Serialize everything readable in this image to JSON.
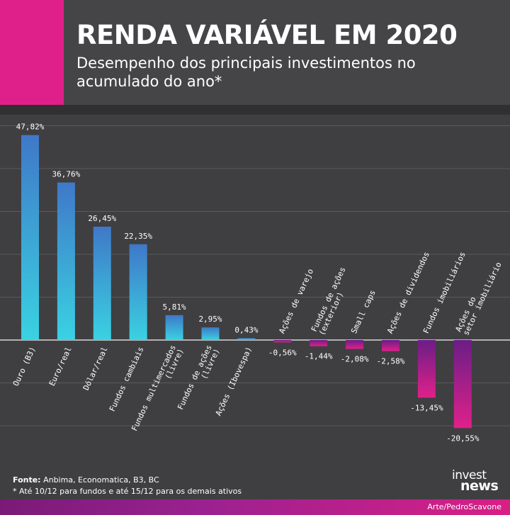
{
  "header": {
    "title": "RENDA VARIÁVEL EM 2020",
    "subtitle": "Desempenho dos principais investimentos no acumulado do ano*"
  },
  "colors": {
    "accent": "#e0208a",
    "positive_top": "#3f78c8",
    "positive_bottom": "#3ad2e2",
    "negative_top": "#6a1e86",
    "negative_bottom": "#e0208a"
  },
  "chart_data": {
    "type": "bar",
    "title": "RENDA VARIÁVEL EM 2020",
    "xlabel": "",
    "ylabel": "",
    "grid": true,
    "ylim": [
      -22,
      50
    ],
    "categories": [
      "Ouro (B3)",
      "Euro/real",
      "Dólar/real",
      "Fundos cambiais",
      "Fundos multimercados (livre)",
      "Fundos de ações (livre)",
      "Ações (Ibovespa)",
      "Ações de varejo",
      "Fundos de ações (exterior)",
      "Small caps",
      "Ações de dividendos",
      "Fundos imobiliários",
      "Ações do setor imobiliário"
    ],
    "category_lines": [
      [
        "Ouro (B3)"
      ],
      [
        "Euro/real"
      ],
      [
        "Dólar/real"
      ],
      [
        "Fundos cambiais"
      ],
      [
        "Fundos multimercados",
        "(livre)"
      ],
      [
        "Fundos de ações",
        "(livre)"
      ],
      [
        "Ações (Ibovespa)"
      ],
      [
        "Ações de varejo"
      ],
      [
        "Fundos de ações",
        "(exterior)"
      ],
      [
        "Small caps"
      ],
      [
        "Ações de dividendos"
      ],
      [
        "Fundos imobiliários"
      ],
      [
        "Ações do",
        "setor imobiliário"
      ]
    ],
    "values": [
      47.82,
      36.76,
      26.45,
      22.35,
      5.81,
      2.95,
      0.43,
      -0.56,
      -1.44,
      -2.08,
      -2.58,
      -13.45,
      -20.55
    ],
    "value_labels": [
      "47,82%",
      "36,76%",
      "26,45%",
      "22,35%",
      "5,81%",
      "2,95%",
      "0,43%",
      "-0,56%",
      "-1,44%",
      "-2,08%",
      "-2,58%",
      "-13,45%",
      "-20,55%"
    ]
  },
  "footer": {
    "source_label": "Fonte:",
    "source_text": " Anbima, Economatica, B3, BC",
    "footnote": "* Até 10/12 para fundos e até 15/12 para os demais ativos",
    "logo_top": "invest",
    "logo_bottom": "news",
    "credit": "Arte/PedroScavone"
  }
}
